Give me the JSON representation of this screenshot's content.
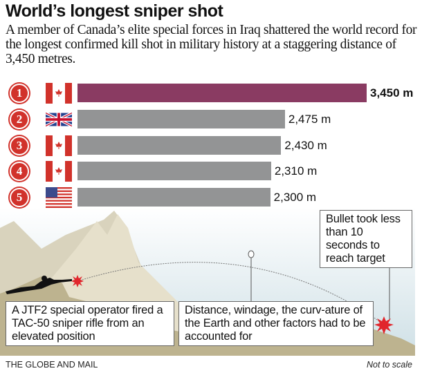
{
  "title": "World’s longest sniper shot",
  "subtitle": "A member of Canada’s elite special forces in Iraq shattered the world record for the longest confirmed kill shot in military history at a staggering distance of 3,450 metres.",
  "chart_data": {
    "type": "bar",
    "orientation": "horizontal",
    "categories": [
      "1",
      "2",
      "3",
      "4",
      "5"
    ],
    "flags": [
      "canada-flag-icon",
      "uk-flag-icon",
      "canada-flag-icon",
      "canada-flag-icon",
      "usa-flag-icon"
    ],
    "values": [
      3450,
      2475,
      2430,
      2310,
      2300
    ],
    "labels": [
      "3,450 m",
      "2,475 m",
      "2,430 m",
      "2,310 m",
      "2,300 m"
    ],
    "unit": "m",
    "colors": {
      "highlight": "#8a3b62",
      "default": "#939495",
      "rank": "#d1322b"
    }
  },
  "annotations": {
    "bullet_time": "Bullet took less than 10 seconds to reach target",
    "operator": "A JTF2 special operator fired a TAC-50 sniper rifle from an elevated position",
    "factors": "Distance, windage, the curv-ature of the Earth and other factors had to be accounted for"
  },
  "source": "THE GLOBE AND MAIL",
  "scale_note": "Not to scale"
}
